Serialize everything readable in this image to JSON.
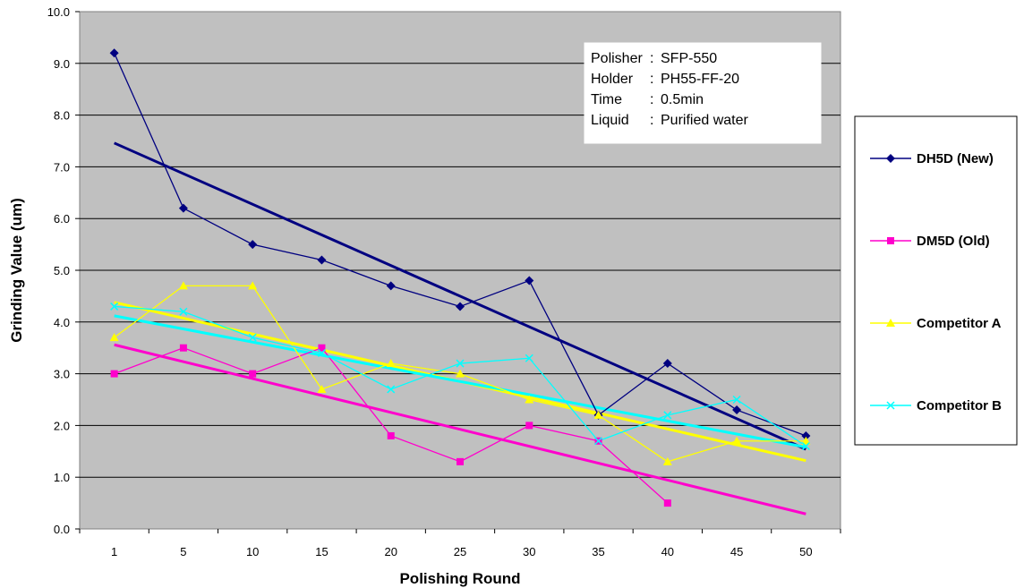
{
  "chart_data": {
    "type": "line",
    "title": "",
    "xlabel": "Polishing Round",
    "ylabel": "Grinding Value (um)",
    "categories": [
      "1",
      "5",
      "10",
      "15",
      "20",
      "25",
      "30",
      "35",
      "40",
      "45",
      "50"
    ],
    "ylim": [
      0,
      10
    ],
    "y_ticks": [
      "0.0",
      "1.0",
      "2.0",
      "3.0",
      "4.0",
      "5.0",
      "6.0",
      "7.0",
      "8.0",
      "9.0",
      "10.0"
    ],
    "grid": "horizontal",
    "plot_background": "#c0c0c0",
    "legend_position": "right",
    "series": [
      {
        "name": "DH5D (New)",
        "color": "#000080",
        "marker": "diamond",
        "values": [
          9.2,
          6.2,
          5.5,
          5.2,
          4.7,
          4.3,
          4.8,
          2.2,
          3.2,
          2.3,
          1.8
        ],
        "trend": [
          7.46,
          1.54
        ]
      },
      {
        "name": "DM5D  (Old)",
        "color": "#ff00cc",
        "marker": "square",
        "values": [
          3.0,
          3.5,
          3.0,
          3.5,
          1.8,
          1.3,
          2.0,
          1.7,
          0.5,
          null,
          null
        ],
        "trend": [
          3.56,
          0.29
        ]
      },
      {
        "name": "Competitor A",
        "color": "#ffff00",
        "marker": "triangle",
        "values": [
          3.7,
          4.7,
          4.7,
          2.7,
          3.2,
          3.0,
          2.5,
          2.2,
          1.3,
          1.7,
          1.7
        ],
        "trend": [
          4.38,
          1.32
        ]
      },
      {
        "name": "Competitor B",
        "color": "#00ffff",
        "marker": "x",
        "values": [
          4.3,
          4.2,
          3.7,
          3.4,
          2.7,
          3.2,
          3.3,
          1.7,
          2.2,
          2.5,
          1.6
        ],
        "trend": [
          4.12,
          1.58
        ]
      }
    ],
    "annotation": [
      {
        "key": "Polisher",
        "value": "SFP-550"
      },
      {
        "key": "Holder",
        "value": "PH55-FF-20"
      },
      {
        "key": "Time",
        "value": "0.5min"
      },
      {
        "key": "Liquid",
        "value": "Purified water"
      }
    ]
  }
}
